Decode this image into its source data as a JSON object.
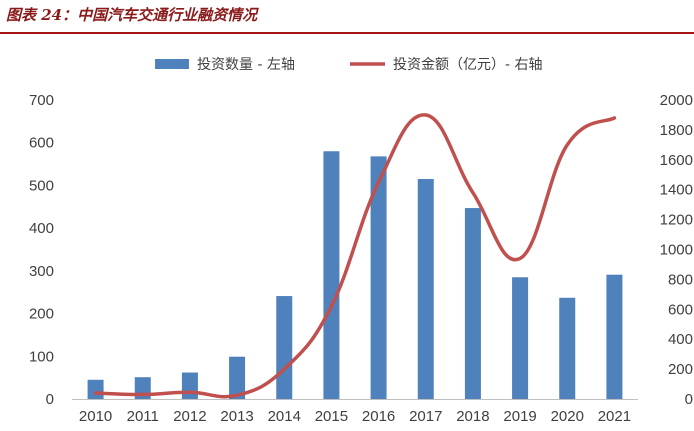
{
  "figure": {
    "title": "图表 24：中国汽车交通行业融资情况"
  },
  "chart_data": {
    "type": "bar",
    "categories": [
      "2010",
      "2011",
      "2012",
      "2013",
      "2014",
      "2015",
      "2016",
      "2017",
      "2018",
      "2019",
      "2020",
      "2021"
    ],
    "series": [
      {
        "name": "投资数量 - 左轴",
        "type": "bar",
        "axis": "left",
        "color": "#4f81bd",
        "values": [
          45,
          51,
          62,
          99,
          241,
          580,
          568,
          515,
          447,
          285,
          237,
          291
        ]
      },
      {
        "name": "投资金额（亿元）- 右轴",
        "type": "line",
        "axis": "right",
        "color": "#c0504d",
        "values": [
          40,
          30,
          45,
          25,
          200,
          620,
          1450,
          1900,
          1380,
          940,
          1700,
          1880
        ]
      }
    ],
    "y_left": {
      "ylim": [
        0,
        700
      ],
      "ticks": [
        "0",
        "100",
        "200",
        "300",
        "400",
        "500",
        "600",
        "700"
      ]
    },
    "y_right": {
      "ylim": [
        0,
        2000
      ],
      "ticks": [
        "0",
        "200",
        "400",
        "600",
        "800",
        "1000",
        "1200",
        "1400",
        "1600",
        "1800",
        "2000"
      ]
    },
    "legend_position": "top-center",
    "grid": false
  }
}
